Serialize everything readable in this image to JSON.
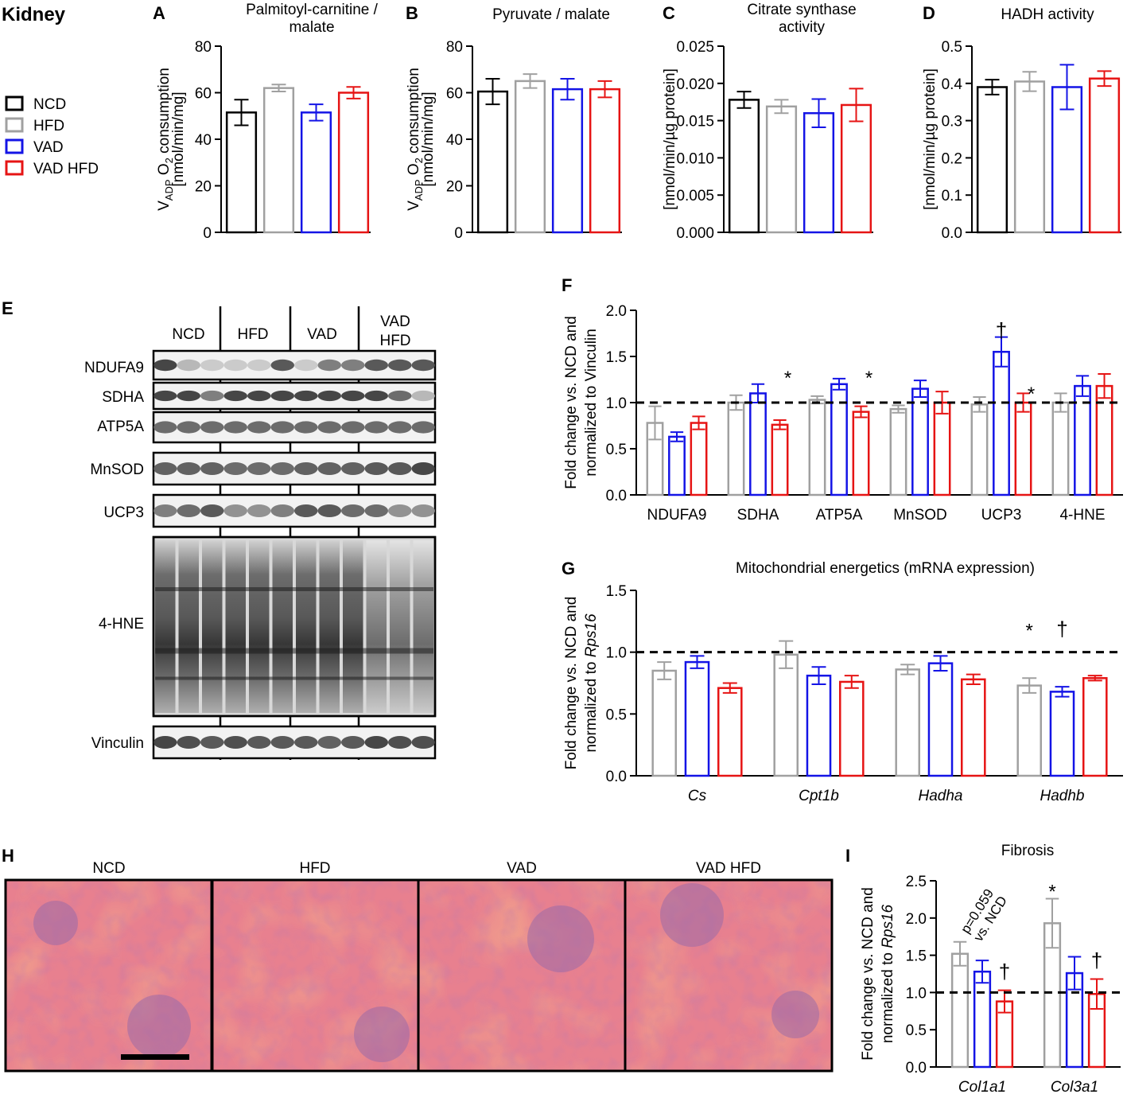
{
  "figure_title": "Kidney",
  "legend": [
    {
      "label": "NCD",
      "color": "#000000"
    },
    {
      "label": "HFD",
      "color": "#a0a0a0"
    },
    {
      "label": "VAD",
      "color": "#1414e6"
    },
    {
      "label": "VAD HFD",
      "color": "#e61414"
    }
  ],
  "chart_data": [
    {
      "id": "A",
      "type": "bar",
      "panel_letter": "A",
      "title": [
        "Palmitoyl-carnitine /",
        "malate"
      ],
      "ylabel": [
        "V",
        "ADP",
        " O",
        "2",
        " consumption"
      ],
      "ylabel2": "[nmol/min/mg]",
      "ylim": [
        0,
        80
      ],
      "yticks": [
        "0",
        "20",
        "40",
        "60",
        "80"
      ],
      "series": [
        {
          "name": "NCD",
          "values": [
            51.5
          ],
          "err": [
            5.5
          ]
        },
        {
          "name": "HFD",
          "values": [
            62
          ],
          "err": [
            1.5
          ]
        },
        {
          "name": "VAD",
          "values": [
            51.5
          ],
          "err": [
            3.5
          ]
        },
        {
          "name": "VAD HFD",
          "values": [
            60
          ],
          "err": [
            2.5
          ]
        }
      ]
    },
    {
      "id": "B",
      "type": "bar",
      "panel_letter": "B",
      "title": [
        "Pyruvate / malate"
      ],
      "ylabel": [
        "V",
        "ADP",
        " O",
        "2",
        " consumption"
      ],
      "ylabel2": "[nmol/min/mg]",
      "ylim": [
        0,
        80
      ],
      "yticks": [
        "0",
        "20",
        "40",
        "60",
        "80"
      ],
      "series": [
        {
          "name": "NCD",
          "values": [
            60.5
          ],
          "err": [
            5.5
          ]
        },
        {
          "name": "HFD",
          "values": [
            65
          ],
          "err": [
            3
          ]
        },
        {
          "name": "VAD",
          "values": [
            61.5
          ],
          "err": [
            4.5
          ]
        },
        {
          "name": "VAD HFD",
          "values": [
            61.5
          ],
          "err": [
            3.5
          ]
        }
      ]
    },
    {
      "id": "C",
      "type": "bar",
      "panel_letter": "C",
      "title": [
        "Citrate synthase",
        "activity"
      ],
      "ylabel2": "[nmol/min/µg protein]",
      "ylim": [
        0,
        0.025
      ],
      "yticks": [
        "0.000",
        "0.005",
        "0.010",
        "0.015",
        "0.020",
        "0.025"
      ],
      "series": [
        {
          "name": "NCD",
          "values": [
            0.0178
          ],
          "err": [
            0.0011
          ]
        },
        {
          "name": "HFD",
          "values": [
            0.0169
          ],
          "err": [
            0.0009
          ]
        },
        {
          "name": "VAD",
          "values": [
            0.016
          ],
          "err": [
            0.0019
          ]
        },
        {
          "name": "VAD HFD",
          "values": [
            0.0171
          ],
          "err": [
            0.0022
          ]
        }
      ]
    },
    {
      "id": "D",
      "type": "bar",
      "panel_letter": "D",
      "title": [
        "HADH activity"
      ],
      "ylabel2": "[nmol/min/µg protein]",
      "ylim": [
        0,
        0.5
      ],
      "yticks": [
        "0.0",
        "0.1",
        "0.2",
        "0.3",
        "0.4",
        "0.5"
      ],
      "series": [
        {
          "name": "NCD",
          "values": [
            0.39
          ],
          "err": [
            0.02
          ]
        },
        {
          "name": "HFD",
          "values": [
            0.405
          ],
          "err": [
            0.026
          ]
        },
        {
          "name": "VAD",
          "values": [
            0.39
          ],
          "err": [
            0.06
          ]
        },
        {
          "name": "VAD HFD",
          "values": [
            0.413
          ],
          "err": [
            0.02
          ]
        }
      ]
    },
    {
      "id": "F",
      "type": "bar",
      "panel_letter": "F",
      "title": [],
      "ylabel": "Fold change vs. NCD and",
      "ylabel2": "normalized to Vinculin",
      "ylim": [
        0,
        2
      ],
      "yticks": [
        "0.0",
        "0.5",
        "1.0",
        "1.5",
        "2.0"
      ],
      "categories": [
        "NDUFA9",
        "SDHA",
        "ATP5A",
        "MnSOD",
        "UCP3",
        "4-HNE"
      ],
      "reference_line": 1.0,
      "series": [
        {
          "name": "HFD",
          "values": [
            0.78,
            1.0,
            1.03,
            0.93,
            0.98,
            1.0
          ],
          "err": [
            0.18,
            0.08,
            0.04,
            0.04,
            0.08,
            0.1
          ]
        },
        {
          "name": "VAD",
          "values": [
            0.63,
            1.1,
            1.2,
            1.15,
            1.55,
            1.18
          ],
          "err": [
            0.05,
            0.1,
            0.06,
            0.09,
            0.16,
            0.11
          ]
        },
        {
          "name": "VAD HFD",
          "values": [
            0.78,
            0.76,
            0.9,
            1.0,
            1.0,
            1.18
          ],
          "err": [
            0.07,
            0.05,
            0.06,
            0.12,
            0.1,
            0.13
          ]
        }
      ],
      "annotations": [
        {
          "text": "*",
          "category": "SDHA",
          "y": 1.3
        },
        {
          "text": "*",
          "category": "ATP5A",
          "y": 1.3
        },
        {
          "text": "†",
          "category": "UCP3",
          "series": "VAD",
          "y": 1.76
        },
        {
          "text": "*",
          "category": "UCP3",
          "y": 1.13
        }
      ]
    },
    {
      "id": "G",
      "type": "bar",
      "panel_letter": "G",
      "title": [
        "Mitochondrial energetics (mRNA expression)"
      ],
      "ylabel": "Fold change vs. NCD and",
      "ylabel2": "normalized to ",
      "ylabel2_italic": "Rps16",
      "ylim": [
        0,
        1.5
      ],
      "yticks": [
        "0.0",
        "0.5",
        "1.0",
        "1.5"
      ],
      "categories": [
        "Cs",
        "Cpt1b",
        "Hadha",
        "Hadhb"
      ],
      "italic_categories": true,
      "reference_line": 1.0,
      "series": [
        {
          "name": "HFD",
          "values": [
            0.85,
            0.98,
            0.86,
            0.73
          ],
          "err": [
            0.07,
            0.11,
            0.04,
            0.06
          ]
        },
        {
          "name": "VAD",
          "values": [
            0.92,
            0.81,
            0.91,
            0.68
          ],
          "err": [
            0.05,
            0.07,
            0.06,
            0.04
          ]
        },
        {
          "name": "VAD HFD",
          "values": [
            0.71,
            0.76,
            0.78,
            0.79
          ],
          "err": [
            0.04,
            0.05,
            0.04,
            0.02
          ]
        }
      ],
      "annotations": [
        {
          "text": "*",
          "category": "Hadhb",
          "series": "HFD",
          "y": 1.2
        },
        {
          "text": "†",
          "category": "Hadhb",
          "series": "VAD",
          "y": 1.17
        }
      ]
    },
    {
      "id": "I",
      "type": "bar",
      "panel_letter": "I",
      "title": [
        "Fibrosis"
      ],
      "ylabel": "Fold change vs. NCD and",
      "ylabel2": "normalized to ",
      "ylabel2_italic": "Rps16",
      "ylim": [
        0,
        2.5
      ],
      "yticks": [
        "0.0",
        "0.5",
        "1.0",
        "1.5",
        "2.0",
        "2.5"
      ],
      "categories": [
        "Col1a1",
        "Col3a1"
      ],
      "italic_categories": true,
      "reference_line": 1.0,
      "series": [
        {
          "name": "HFD",
          "values": [
            1.52,
            1.93
          ],
          "err": [
            0.16,
            0.33
          ]
        },
        {
          "name": "VAD",
          "values": [
            1.28,
            1.26
          ],
          "err": [
            0.15,
            0.22
          ]
        },
        {
          "name": "VAD HFD",
          "values": [
            0.88,
            0.98
          ],
          "err": [
            0.15,
            0.2
          ]
        }
      ],
      "annotations": [
        {
          "text": "†",
          "category": "Col1a1",
          "series": "VAD HFD",
          "y": 1.25
        },
        {
          "text": "*",
          "category": "Col3a1",
          "series": "HFD",
          "y": 2.4
        },
        {
          "text": "†",
          "category": "Col3a1",
          "series": "VAD HFD",
          "y": 1.4
        }
      ],
      "rotated_note": [
        "p=0.059",
        "vs. NCD"
      ]
    }
  ],
  "blot": {
    "panel_letter": "E",
    "groups": [
      "NCD",
      "HFD",
      "VAD",
      "VAD",
      "HFD"
    ],
    "rows": [
      "NDUFA9",
      "SDHA",
      "ATP5A",
      "MnSOD",
      "UCP3",
      "4-HNE",
      "Vinculin"
    ]
  },
  "histology": {
    "panel_letter": "H",
    "labels": [
      "NCD",
      "HFD",
      "VAD",
      "VAD HFD"
    ]
  },
  "colors": {
    "HFD": "#a0a0a0",
    "VAD": "#1414e6",
    "VAD HFD": "#e61414",
    "NCD": "#000000"
  }
}
